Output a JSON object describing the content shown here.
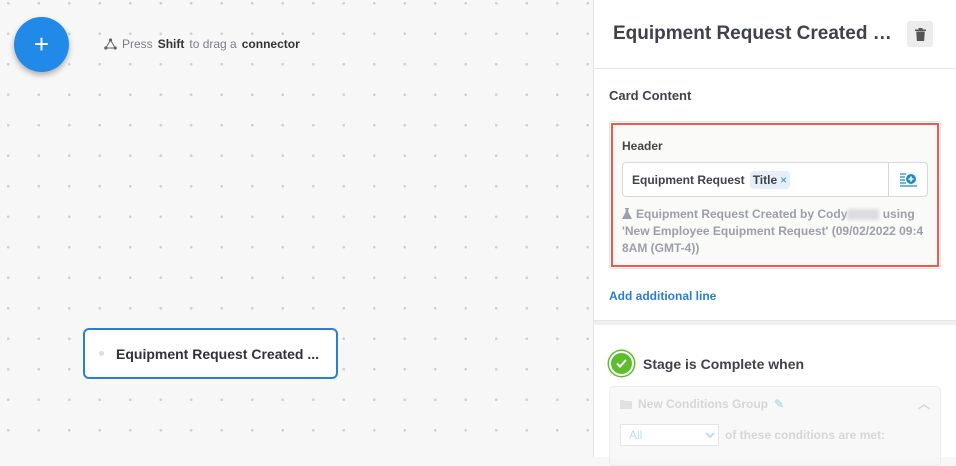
{
  "canvas": {
    "add_button": "+",
    "hint": {
      "pre": "Press",
      "key": "Shift",
      "mid": "to drag a",
      "target": "connector"
    },
    "node_label": "Equipment Request Created ..."
  },
  "panel": {
    "title": "Equipment Request Created b...",
    "card_content_heading": "Card Content",
    "header_label": "Header",
    "header_field": {
      "text": "Equipment Request",
      "token": "Title",
      "token_remove": "×"
    },
    "preview": {
      "before": "Equipment Request Created by Cody",
      "after": "using 'New Employee Equipment Request' (09/02/2022 09:48AM (GMT-4))"
    },
    "add_line": "Add additional line",
    "stage_heading": "Stage is Complete when",
    "conditions_group": {
      "name": "New Conditions Group",
      "match_select": "All",
      "match_text": "of these conditions are met:"
    }
  },
  "colors": {
    "accent": "#2189e8",
    "highlight": "#ef5a4c",
    "success": "#5ebd2e"
  }
}
